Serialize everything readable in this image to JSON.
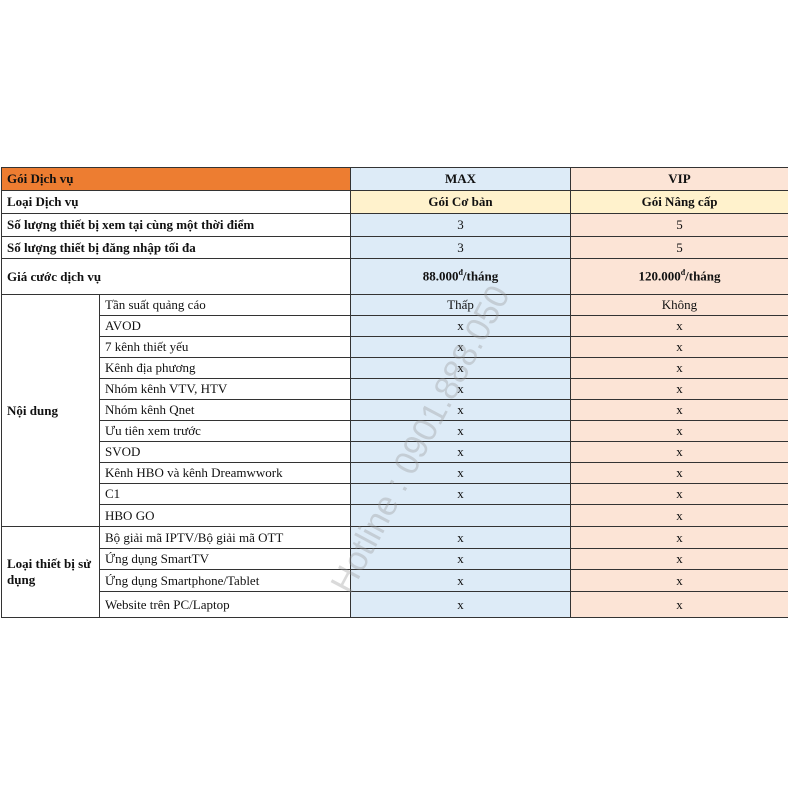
{
  "header": {
    "label": "Gói Dịch vụ",
    "max": "MAX",
    "vip": "VIP"
  },
  "type": {
    "label": "Loại Dịch vụ",
    "max": "Gói Cơ bản",
    "vip": "Gói Nâng cấp"
  },
  "concurrent": {
    "label": "Số lượng thiết bị xem tại cùng một thời điểm",
    "max": "3",
    "vip": "5"
  },
  "login": {
    "label": "Số lượng thiết bị đăng nhập tối đa",
    "max": "3",
    "vip": "5"
  },
  "price": {
    "label": "Giá cước dịch vụ",
    "max": "88.000",
    "vip": "120.000",
    "currency": "đ",
    "unit": "/tháng"
  },
  "content": {
    "group": "Nội dung",
    "rows": [
      {
        "label": "Tần suất quảng cáo",
        "max": "Thấp",
        "vip": "Không"
      },
      {
        "label": "AVOD",
        "max": "x",
        "vip": "x"
      },
      {
        "label": "7 kênh thiết yếu",
        "max": "x",
        "vip": "x"
      },
      {
        "label": "Kênh địa phương",
        "max": "x",
        "vip": "x"
      },
      {
        "label": "Nhóm kênh VTV, HTV",
        "max": "x",
        "vip": "x"
      },
      {
        "label": "Nhóm kênh Qnet",
        "max": "x",
        "vip": "x"
      },
      {
        "label": "Ưu tiên xem trước",
        "max": "x",
        "vip": "x"
      },
      {
        "label": "SVOD",
        "max": "x",
        "vip": "x"
      },
      {
        "label": "Kênh HBO và kênh Dreamwwork",
        "max": "x",
        "vip": "x"
      },
      {
        "label": "C1",
        "max": "x",
        "vip": "x"
      },
      {
        "label": "HBO GO",
        "max": "",
        "vip": "x"
      }
    ]
  },
  "devices": {
    "group": "Loại thiết bị sử dụng",
    "rows": [
      {
        "label": "Bộ giải mã IPTV/Bộ giải mã OTT",
        "max": "x",
        "vip": "x"
      },
      {
        "label": "Ứng dụng SmartTV",
        "max": "x",
        "vip": "x"
      },
      {
        "label": "Ứng dụng Smartphone/Tablet",
        "max": "x",
        "vip": "x"
      },
      {
        "label": "Website trên PC/Laptop",
        "max": "x",
        "vip": "x"
      }
    ]
  },
  "watermark": "Hotline : 0901.888.050"
}
